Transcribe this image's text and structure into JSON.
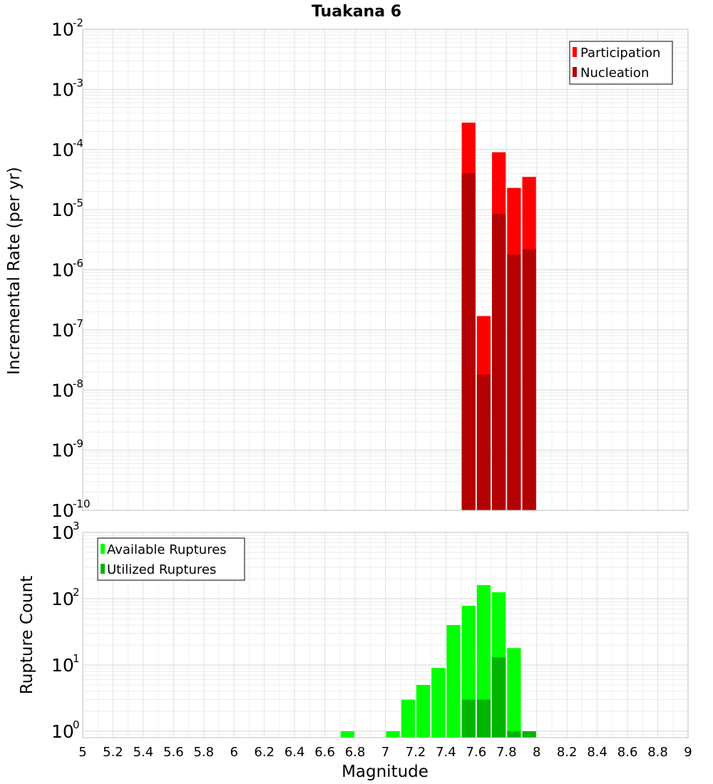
{
  "chart_data": [
    {
      "type": "bar",
      "title": "Tuakana 6",
      "xlabel": "",
      "ylabel": "Incremental Rate (per yr)",
      "yscale": "log",
      "xlim": [
        5,
        9
      ],
      "ylim": [
        1e-10,
        0.01
      ],
      "yticks": [
        "10^-10",
        "10^-9",
        "10^-8",
        "10^-7",
        "10^-6",
        "10^-5",
        "10^-4",
        "10^-3",
        "10^-2"
      ],
      "grid": true,
      "bar_width": 0.1,
      "legend_position": "top-right",
      "series": [
        {
          "name": "Participation",
          "color": "#ff0000",
          "x": [
            7.55,
            7.65,
            7.75,
            7.85,
            7.95
          ],
          "values": [
            0.00028,
            1.7e-07,
            9e-05,
            2.3e-05,
            3.5e-05
          ]
        },
        {
          "name": "Nucleation",
          "color": "#b30000",
          "x": [
            7.55,
            7.65,
            7.75,
            7.85,
            7.95
          ],
          "values": [
            4e-05,
            1.8e-08,
            8.5e-06,
            1.8e-06,
            2.2e-06
          ]
        }
      ]
    },
    {
      "type": "bar",
      "title": "",
      "xlabel": "Magnitude",
      "ylabel": "Rupture Count",
      "yscale": "log",
      "xlim": [
        5,
        9
      ],
      "ylim": [
        0.8,
        1000
      ],
      "yticks": [
        "10^0",
        "10^1",
        "10^2",
        "10^3"
      ],
      "xticks": [
        "5",
        "5.2",
        "5.4",
        "5.6",
        "5.8",
        "6",
        "6.2",
        "6.4",
        "6.6",
        "6.8",
        "7",
        "7.2",
        "7.4",
        "7.6",
        "7.8",
        "8",
        "8.2",
        "8.4",
        "8.6",
        "8.8",
        "9"
      ],
      "grid": true,
      "bar_width": 0.1,
      "legend_position": "top-left",
      "series": [
        {
          "name": "Available Ruptures",
          "color": "#00ff00",
          "x": [
            6.75,
            7.05,
            7.15,
            7.25,
            7.35,
            7.45,
            7.55,
            7.65,
            7.75,
            7.85,
            7.95
          ],
          "values": [
            1,
            1,
            3,
            5,
            9,
            40,
            78,
            160,
            125,
            18,
            1
          ]
        },
        {
          "name": "Utilized Ruptures",
          "color": "#00b400",
          "x": [
            7.55,
            7.65,
            7.75,
            7.85,
            7.95
          ],
          "values": [
            3,
            3,
            13,
            1,
            1
          ]
        }
      ]
    }
  ]
}
